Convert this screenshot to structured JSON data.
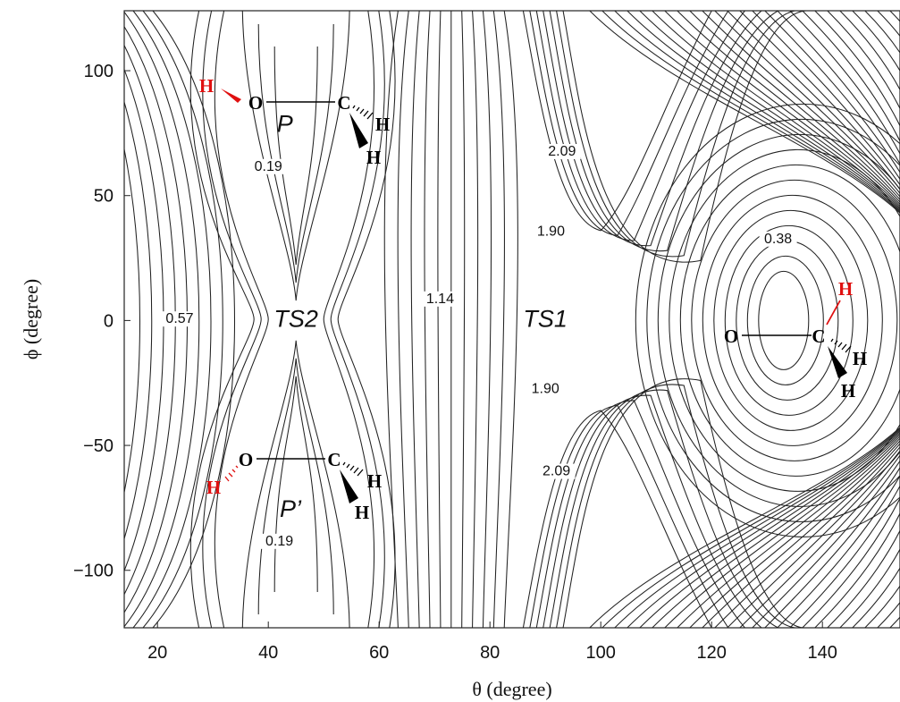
{
  "chart_data": {
    "type": "contour",
    "xlabel": "θ (degree)",
    "ylabel": "ϕ (degree)",
    "xlim": [
      14,
      154
    ],
    "ylim": [
      -123,
      124
    ],
    "x_ticks": [
      20,
      40,
      60,
      80,
      100,
      120,
      140
    ],
    "y_ticks": [
      100,
      50,
      0,
      -50,
      -100
    ],
    "y_tick_labels": [
      "100",
      "50",
      "0",
      "−50",
      "−100"
    ],
    "grid": false,
    "contour_labels": [
      {
        "text": "0.19",
        "x": 40,
        "y": 60
      },
      {
        "text": "0.19",
        "x": 42,
        "y": -90
      },
      {
        "text": "0.57",
        "x": 24,
        "y": -1
      },
      {
        "text": "1.14",
        "x": 71,
        "y": 7
      },
      {
        "text": "2.09",
        "x": 93,
        "y": 66
      },
      {
        "text": "1.90",
        "x": 91,
        "y": 34
      },
      {
        "text": "1.90",
        "x": 90,
        "y": -29
      },
      {
        "text": "2.09",
        "x": 92,
        "y": -62
      },
      {
        "text": "0.38",
        "x": 132,
        "y": 31
      }
    ],
    "regions": [
      {
        "text": "P",
        "x": 43,
        "y": 79
      },
      {
        "text": "P’",
        "x": 44,
        "y": -75
      },
      {
        "text": "TS2",
        "x": 45,
        "y": 1
      },
      {
        "text": "TS1",
        "x": 90,
        "y": 1
      }
    ],
    "molecules": [
      {
        "name": "molecule-p",
        "atoms": [
          {
            "symbol": "H",
            "color": "#e01010"
          },
          {
            "symbol": "O",
            "color": "#000000"
          },
          {
            "symbol": "C",
            "color": "#000000"
          },
          {
            "symbol": "H",
            "color": "#000000"
          },
          {
            "symbol": "H",
            "color": "#000000"
          }
        ]
      },
      {
        "name": "molecule-p-prime",
        "atoms": [
          {
            "symbol": "H",
            "color": "#e01010"
          },
          {
            "symbol": "O",
            "color": "#000000"
          },
          {
            "symbol": "C",
            "color": "#000000"
          },
          {
            "symbol": "H",
            "color": "#000000"
          },
          {
            "symbol": "H",
            "color": "#000000"
          }
        ]
      },
      {
        "name": "molecule-methoxy",
        "atoms": [
          {
            "symbol": "O",
            "color": "#000000"
          },
          {
            "symbol": "C",
            "color": "#000000"
          },
          {
            "symbol": "H",
            "color": "#e01010"
          },
          {
            "symbol": "H",
            "color": "#000000"
          },
          {
            "symbol": "H",
            "color": "#000000"
          }
        ]
      }
    ]
  }
}
